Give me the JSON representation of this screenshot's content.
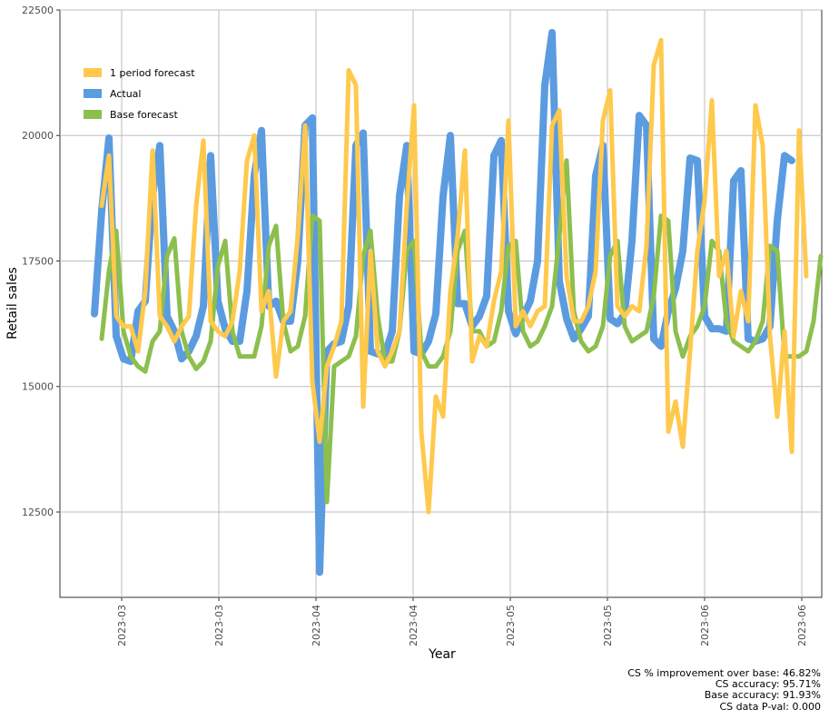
{
  "chart_data": {
    "type": "line",
    "xlabel": "Year",
    "ylabel": "Retail sales",
    "ylim": [
      10800,
      22500
    ],
    "y_ticks": [
      12500,
      15000,
      17500,
      20000,
      22500
    ],
    "x_tick_labels": [
      "2023-03",
      "2023-03",
      "2023-04",
      "2023-04",
      "2023-05",
      "2023-05",
      "2023-06",
      "2023-06"
    ],
    "grid": true,
    "legend_position": "top-left",
    "series": [
      {
        "name": "Actual",
        "color": "#5b9be0",
        "values": [
          16450,
          18500,
          19950,
          16000,
          15550,
          15500,
          16500,
          16700,
          18800,
          19800,
          16400,
          16100,
          15550,
          15700,
          16000,
          16600,
          19600,
          16700,
          16150,
          15900,
          15900,
          16900,
          19200,
          20100,
          16600,
          16700,
          16300,
          16300,
          17500,
          20200,
          20350,
          11300,
          15700,
          15850,
          15900,
          16600,
          19800,
          20050,
          15700,
          15650,
          15650,
          16100,
          18800,
          19800,
          15700,
          15650,
          15900,
          16450,
          18800,
          20000,
          16650,
          16650,
          16200,
          16400,
          16800,
          19600,
          19900,
          16500,
          16050,
          16400,
          16700,
          17500,
          21000,
          22050,
          17100,
          16350,
          15950,
          16150,
          16400,
          19200,
          19800,
          16350,
          16250,
          16450,
          17900,
          20400,
          20200,
          15950,
          15800,
          16500,
          16950,
          17700,
          19550,
          19500,
          16400,
          16150,
          16150,
          16100,
          19100,
          19300,
          15950,
          15900,
          15950,
          16200,
          18300,
          19600,
          19500
        ],
        "x_index_offset": 0
      },
      {
        "name": "1 period forecast",
        "color": "#fec94d",
        "values": [
          18600,
          19600,
          16400,
          16200,
          16200,
          15700,
          16900,
          19700,
          16400,
          16200,
          15900,
          16200,
          16400,
          18600,
          19900,
          16300,
          16100,
          16000,
          16300,
          17300,
          19500,
          20000,
          16500,
          16900,
          15200,
          16300,
          16500,
          18000,
          20200,
          15100,
          13900,
          15400,
          15800,
          16300,
          21300,
          21000,
          14600,
          17700,
          15700,
          15400,
          15700,
          16100,
          18600,
          20600,
          14100,
          12500,
          14800,
          14400,
          16900,
          18000,
          19700,
          15500,
          16000,
          15800,
          16700,
          17300,
          20300,
          16200,
          16500,
          16200,
          16500,
          16600,
          20200,
          20500,
          17200,
          16300,
          16300,
          16600,
          17300,
          20300,
          20900,
          16600,
          16400,
          16600,
          16500,
          17800,
          21400,
          21900,
          14100,
          14700,
          13800,
          15700,
          17700,
          18700,
          20700,
          17200,
          17700,
          16000,
          16900,
          16300,
          20600,
          19800,
          16000,
          14400,
          16100,
          13700,
          20100,
          17200
        ],
        "x_index_offset": 1
      },
      {
        "name": "Base forecast",
        "color": "#8cbf4d",
        "values": [
          15950,
          17300,
          18100,
          16100,
          15600,
          15400,
          15300,
          15900,
          16100,
          17600,
          17950,
          16100,
          15600,
          15350,
          15500,
          15900,
          17400,
          17900,
          16100,
          15600,
          15600,
          15600,
          16200,
          17800,
          18200,
          16300,
          15700,
          15800,
          16400,
          18400,
          18300,
          12700,
          15400,
          15500,
          15600,
          16000,
          17600,
          18100,
          16400,
          15500,
          15500,
          16100,
          17700,
          17900,
          15700,
          15400,
          15400,
          15600,
          16100,
          17700,
          18100,
          16100,
          16100,
          15800,
          15900,
          16500,
          17800,
          17900,
          16100,
          15800,
          15900,
          16200,
          16600,
          18000,
          19500,
          16500,
          15900,
          15700,
          15800,
          16200,
          17600,
          17900,
          16200,
          15900,
          16000,
          16100,
          16800,
          18400,
          18300,
          16100,
          15600,
          16000,
          16200,
          16600,
          17900,
          17700,
          16300,
          15900,
          15800,
          15700,
          15900,
          16300,
          17800,
          17700,
          15600,
          15600,
          15600,
          15700,
          16300,
          17600
        ]
      }
    ],
    "annotations": [
      "CS % improvement over base: 46.82%",
      "CS accuracy: 95.71%",
      "Base accuracy: 91.93%",
      "CS data P-val: 0.000"
    ]
  }
}
